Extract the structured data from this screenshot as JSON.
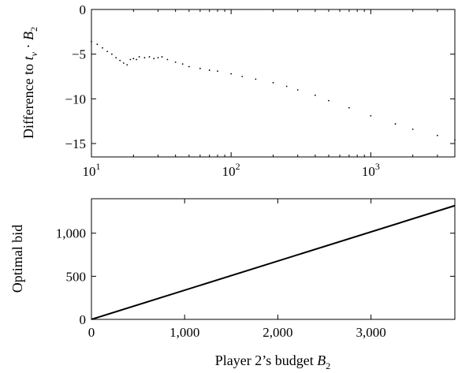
{
  "chart_data": [
    {
      "type": "scatter",
      "title": "",
      "xlabel": "",
      "ylabel": "Difference to t_v · B_2",
      "ylabel_parts": {
        "text": "Difference to ",
        "var": "t",
        "sub": "v",
        "dot": " · ",
        "var2": "B",
        "sub2": "2"
      },
      "xscale": "log",
      "xlim": [
        10,
        4000
      ],
      "ylim": [
        -16.5,
        0
      ],
      "x_ticks": [
        10,
        100,
        1000
      ],
      "x_tick_labels": [
        {
          "base": "10",
          "exp": "1"
        },
        {
          "base": "10",
          "exp": "2"
        },
        {
          "base": "10",
          "exp": "3"
        }
      ],
      "y_ticks": [
        0,
        -5,
        -10,
        -15
      ],
      "y_tick_labels": [
        "0",
        "−5",
        "−10",
        "−15"
      ],
      "grid": false,
      "series": [
        {
          "marker": "dot",
          "color": "#000000",
          "points": [
            [
              10,
              -3.6
            ],
            [
              11,
              -3.9
            ],
            [
              12,
              -4.3
            ],
            [
              13,
              -4.7
            ],
            [
              14,
              -5.0
            ],
            [
              15,
              -5.4
            ],
            [
              16,
              -5.7
            ],
            [
              17,
              -6.0
            ],
            [
              18,
              -6.2
            ],
            [
              19,
              -5.6
            ],
            [
              20,
              -5.5
            ],
            [
              21,
              -5.6
            ],
            [
              22,
              -5.3
            ],
            [
              24,
              -5.4
            ],
            [
              26,
              -5.3
            ],
            [
              28,
              -5.5
            ],
            [
              30,
              -5.4
            ],
            [
              32,
              -5.3
            ],
            [
              35,
              -5.6
            ],
            [
              40,
              -5.9
            ],
            [
              45,
              -6.1
            ],
            [
              50,
              -6.4
            ],
            [
              60,
              -6.6
            ],
            [
              70,
              -6.8
            ],
            [
              80,
              -6.9
            ],
            [
              100,
              -7.2
            ],
            [
              120,
              -7.5
            ],
            [
              150,
              -7.8
            ],
            [
              200,
              -8.2
            ],
            [
              250,
              -8.6
            ],
            [
              300,
              -9.0
            ],
            [
              400,
              -9.6
            ],
            [
              500,
              -10.2
            ],
            [
              700,
              -11.0
            ],
            [
              1000,
              -11.9
            ],
            [
              1500,
              -12.8
            ],
            [
              2000,
              -13.4
            ],
            [
              3000,
              -14.1
            ],
            [
              4000,
              -14.6
            ]
          ]
        }
      ]
    },
    {
      "type": "line",
      "title": "",
      "xlabel": "Player 2’s budget B_2",
      "xlabel_parts": {
        "text": "Player 2’s budget ",
        "var": "B",
        "sub": "2"
      },
      "ylabel": "Optimal bid",
      "xlim": [
        0,
        3900
      ],
      "ylim": [
        0,
        1400
      ],
      "x_ticks": [
        0,
        1000,
        2000,
        3000
      ],
      "x_tick_labels": [
        "0",
        "1,000",
        "2,000",
        "3,000"
      ],
      "y_ticks": [
        0,
        500,
        1000
      ],
      "y_tick_labels": [
        "0",
        "500",
        "1,000"
      ],
      "grid": false,
      "series": [
        {
          "color": "#000000",
          "x": [
            0,
            3900
          ],
          "y": [
            0,
            1320
          ]
        }
      ]
    }
  ]
}
